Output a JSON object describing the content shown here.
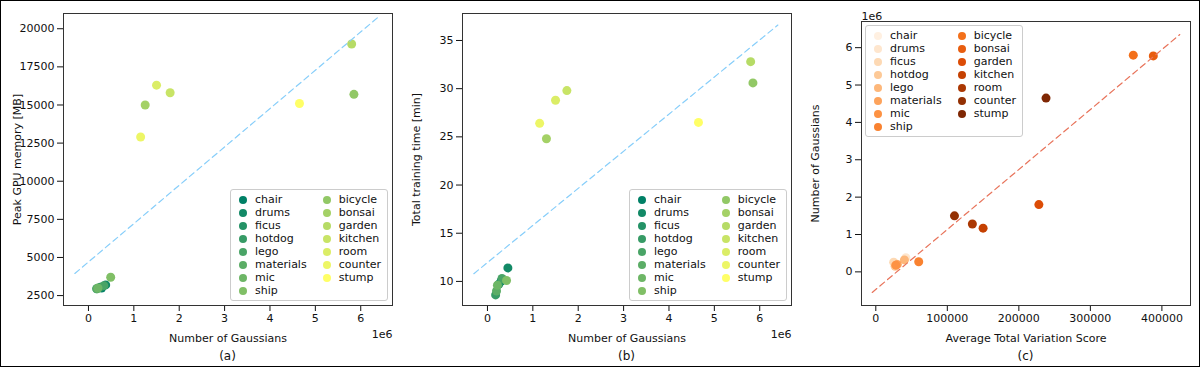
{
  "chart_data": [
    {
      "type": "scatter",
      "xlabel": "Number of Gaussians",
      "ylabel": "Peak GPU memory [MB]",
      "caption": "(a)",
      "x_offset_label": "1e6",
      "xlim": [
        -0.55,
        6.7
      ],
      "ylim": [
        1850,
        21000
      ],
      "xticks": [
        0,
        1,
        2,
        3,
        4,
        5,
        6
      ],
      "yticks": [
        2500,
        5000,
        7500,
        10000,
        12500,
        15000,
        17500,
        20000
      ],
      "legend": "lower right",
      "series": [
        {
          "name": "chair",
          "color": "#008066",
          "x": [
            0.29
          ],
          "values": [
            3000
          ]
        },
        {
          "name": "drums",
          "color": "#128966",
          "x": [
            0.38
          ],
          "values": [
            3200
          ]
        },
        {
          "name": "ficus",
          "color": "#249266",
          "x": [
            0.26
          ],
          "values": [
            3050
          ]
        },
        {
          "name": "hotdog",
          "color": "#379b66",
          "x": [
            0.18
          ],
          "values": [
            2950
          ]
        },
        {
          "name": "lego",
          "color": "#49a466",
          "x": [
            0.34
          ],
          "values": [
            3150
          ]
        },
        {
          "name": "materials",
          "color": "#5bad66",
          "x": [
            0.19
          ],
          "values": [
            2950
          ]
        },
        {
          "name": "mic",
          "color": "#6db666",
          "x": [
            0.21
          ],
          "values": [
            3000
          ]
        },
        {
          "name": "ship",
          "color": "#80bf66",
          "x": [
            0.49
          ],
          "values": [
            3700
          ]
        },
        {
          "name": "bicycle",
          "color": "#92c866",
          "x": [
            5.85
          ],
          "values": [
            15700
          ]
        },
        {
          "name": "bonsai",
          "color": "#a4d166",
          "x": [
            1.25
          ],
          "values": [
            15000
          ]
        },
        {
          "name": "garden",
          "color": "#b6db66",
          "x": [
            5.8
          ],
          "values": [
            19000
          ]
        },
        {
          "name": "kitchen",
          "color": "#c8e466",
          "x": [
            1.8
          ],
          "values": [
            15800
          ]
        },
        {
          "name": "room",
          "color": "#dbed66",
          "x": [
            1.5
          ],
          "values": [
            16300
          ]
        },
        {
          "name": "counter",
          "color": "#edf666",
          "x": [
            1.15
          ],
          "values": [
            12900
          ]
        },
        {
          "name": "stump",
          "color": "#ffff66",
          "x": [
            4.65
          ],
          "values": [
            15100
          ]
        },
        {
          "type": "line",
          "line_style": "dashed",
          "color": "#87cefa",
          "x": [
            -0.3,
            6.4
          ],
          "values": [
            3950,
            20800
          ]
        }
      ]
    },
    {
      "type": "scatter",
      "xlabel": "Number of Gaussians",
      "ylabel": "Total training time [min]",
      "caption": "(b)",
      "x_offset_label": "1e6",
      "xlim": [
        -0.55,
        6.7
      ],
      "ylim": [
        7.5,
        37.8
      ],
      "xticks": [
        0,
        1,
        2,
        3,
        4,
        5,
        6
      ],
      "yticks": [
        10,
        15,
        20,
        25,
        30,
        35
      ],
      "legend": "lower right",
      "series": [
        {
          "name": "chair",
          "color": "#008066",
          "x": [
            0.3
          ],
          "values": [
            10.0
          ]
        },
        {
          "name": "drums",
          "color": "#128966",
          "x": [
            0.45
          ],
          "values": [
            11.4
          ]
        },
        {
          "name": "ficus",
          "color": "#249266",
          "x": [
            0.25
          ],
          "values": [
            9.7
          ]
        },
        {
          "name": "hotdog",
          "color": "#379b66",
          "x": [
            0.18
          ],
          "values": [
            8.6
          ]
        },
        {
          "name": "lego",
          "color": "#49a466",
          "x": [
            0.32
          ],
          "values": [
            10.3
          ]
        },
        {
          "name": "materials",
          "color": "#5bad66",
          "x": [
            0.2
          ],
          "values": [
            9.0
          ]
        },
        {
          "name": "mic",
          "color": "#6db666",
          "x": [
            0.22
          ],
          "values": [
            9.6
          ]
        },
        {
          "name": "ship",
          "color": "#80bf66",
          "x": [
            0.42
          ],
          "values": [
            10.1
          ]
        },
        {
          "name": "bicycle",
          "color": "#92c866",
          "x": [
            5.85
          ],
          "values": [
            30.6
          ]
        },
        {
          "name": "bonsai",
          "color": "#a4d166",
          "x": [
            1.3
          ],
          "values": [
            24.8
          ]
        },
        {
          "name": "garden",
          "color": "#b6db66",
          "x": [
            5.8
          ],
          "values": [
            32.8
          ]
        },
        {
          "name": "kitchen",
          "color": "#c8e466",
          "x": [
            1.75
          ],
          "values": [
            29.8
          ]
        },
        {
          "name": "room",
          "color": "#dbed66",
          "x": [
            1.5
          ],
          "values": [
            28.8
          ]
        },
        {
          "name": "counter",
          "color": "#edf666",
          "x": [
            1.15
          ],
          "values": [
            26.4
          ]
        },
        {
          "name": "stump",
          "color": "#ffff66",
          "x": [
            4.65
          ],
          "values": [
            26.5
          ]
        },
        {
          "type": "line",
          "line_style": "dashed",
          "color": "#87cefa",
          "x": [
            -0.3,
            6.4
          ],
          "values": [
            10.8,
            36.6
          ]
        }
      ]
    },
    {
      "type": "scatter",
      "xlabel": "Average Total Variation Score",
      "ylabel": "Number of Gaussians",
      "caption": "(c)",
      "y_offset_label": "1e6",
      "xlim": [
        -20000,
        440000
      ],
      "ylim": [
        -0.9,
        6.7
      ],
      "xticks": [
        0,
        100000,
        200000,
        300000,
        400000
      ],
      "yticks": [
        0,
        1,
        2,
        3,
        4,
        5,
        6
      ],
      "legend": "upper left",
      "series": [
        {
          "name": "chair",
          "color": "#fff0e1",
          "x": [
            28000
          ],
          "values": [
            0.22
          ]
        },
        {
          "name": "drums",
          "color": "#fee6ce",
          "x": [
            42000
          ],
          "values": [
            0.38
          ]
        },
        {
          "name": "ficus",
          "color": "#fdd9b4",
          "x": [
            25000
          ],
          "values": [
            0.26
          ]
        },
        {
          "name": "hotdog",
          "color": "#fdc997",
          "x": [
            27000
          ],
          "values": [
            0.15
          ]
        },
        {
          "name": "lego",
          "color": "#fdb77a",
          "x": [
            40000
          ],
          "values": [
            0.32
          ]
        },
        {
          "name": "materials",
          "color": "#fda35c",
          "x": [
            30000
          ],
          "values": [
            0.2
          ]
        },
        {
          "name": "mic",
          "color": "#fd9243",
          "x": [
            28000
          ],
          "values": [
            0.18
          ]
        },
        {
          "name": "ship",
          "color": "#f98230",
          "x": [
            60000
          ],
          "values": [
            0.27
          ]
        },
        {
          "name": "bicycle",
          "color": "#f3701b",
          "x": [
            360000
          ],
          "values": [
            5.8
          ]
        },
        {
          "name": "bonsai",
          "color": "#e85d0f",
          "x": [
            388000
          ],
          "values": [
            5.78
          ]
        },
        {
          "name": "garden",
          "color": "#dc4c06",
          "x": [
            228000
          ],
          "values": [
            1.8
          ]
        },
        {
          "name": "kitchen",
          "color": "#c54102",
          "x": [
            150000
          ],
          "values": [
            1.17
          ]
        },
        {
          "name": "room",
          "color": "#ab3803",
          "x": [
            135000
          ],
          "values": [
            1.28
          ]
        },
        {
          "name": "counter",
          "color": "#933003",
          "x": [
            110000
          ],
          "values": [
            1.5
          ]
        },
        {
          "name": "stump",
          "color": "#7f2704",
          "x": [
            238000
          ],
          "values": [
            4.65
          ]
        },
        {
          "type": "line",
          "line_style": "dashed",
          "color": "#e8735a",
          "x": [
            -5000,
            425000
          ],
          "values": [
            -0.55,
            6.35
          ]
        }
      ]
    }
  ]
}
